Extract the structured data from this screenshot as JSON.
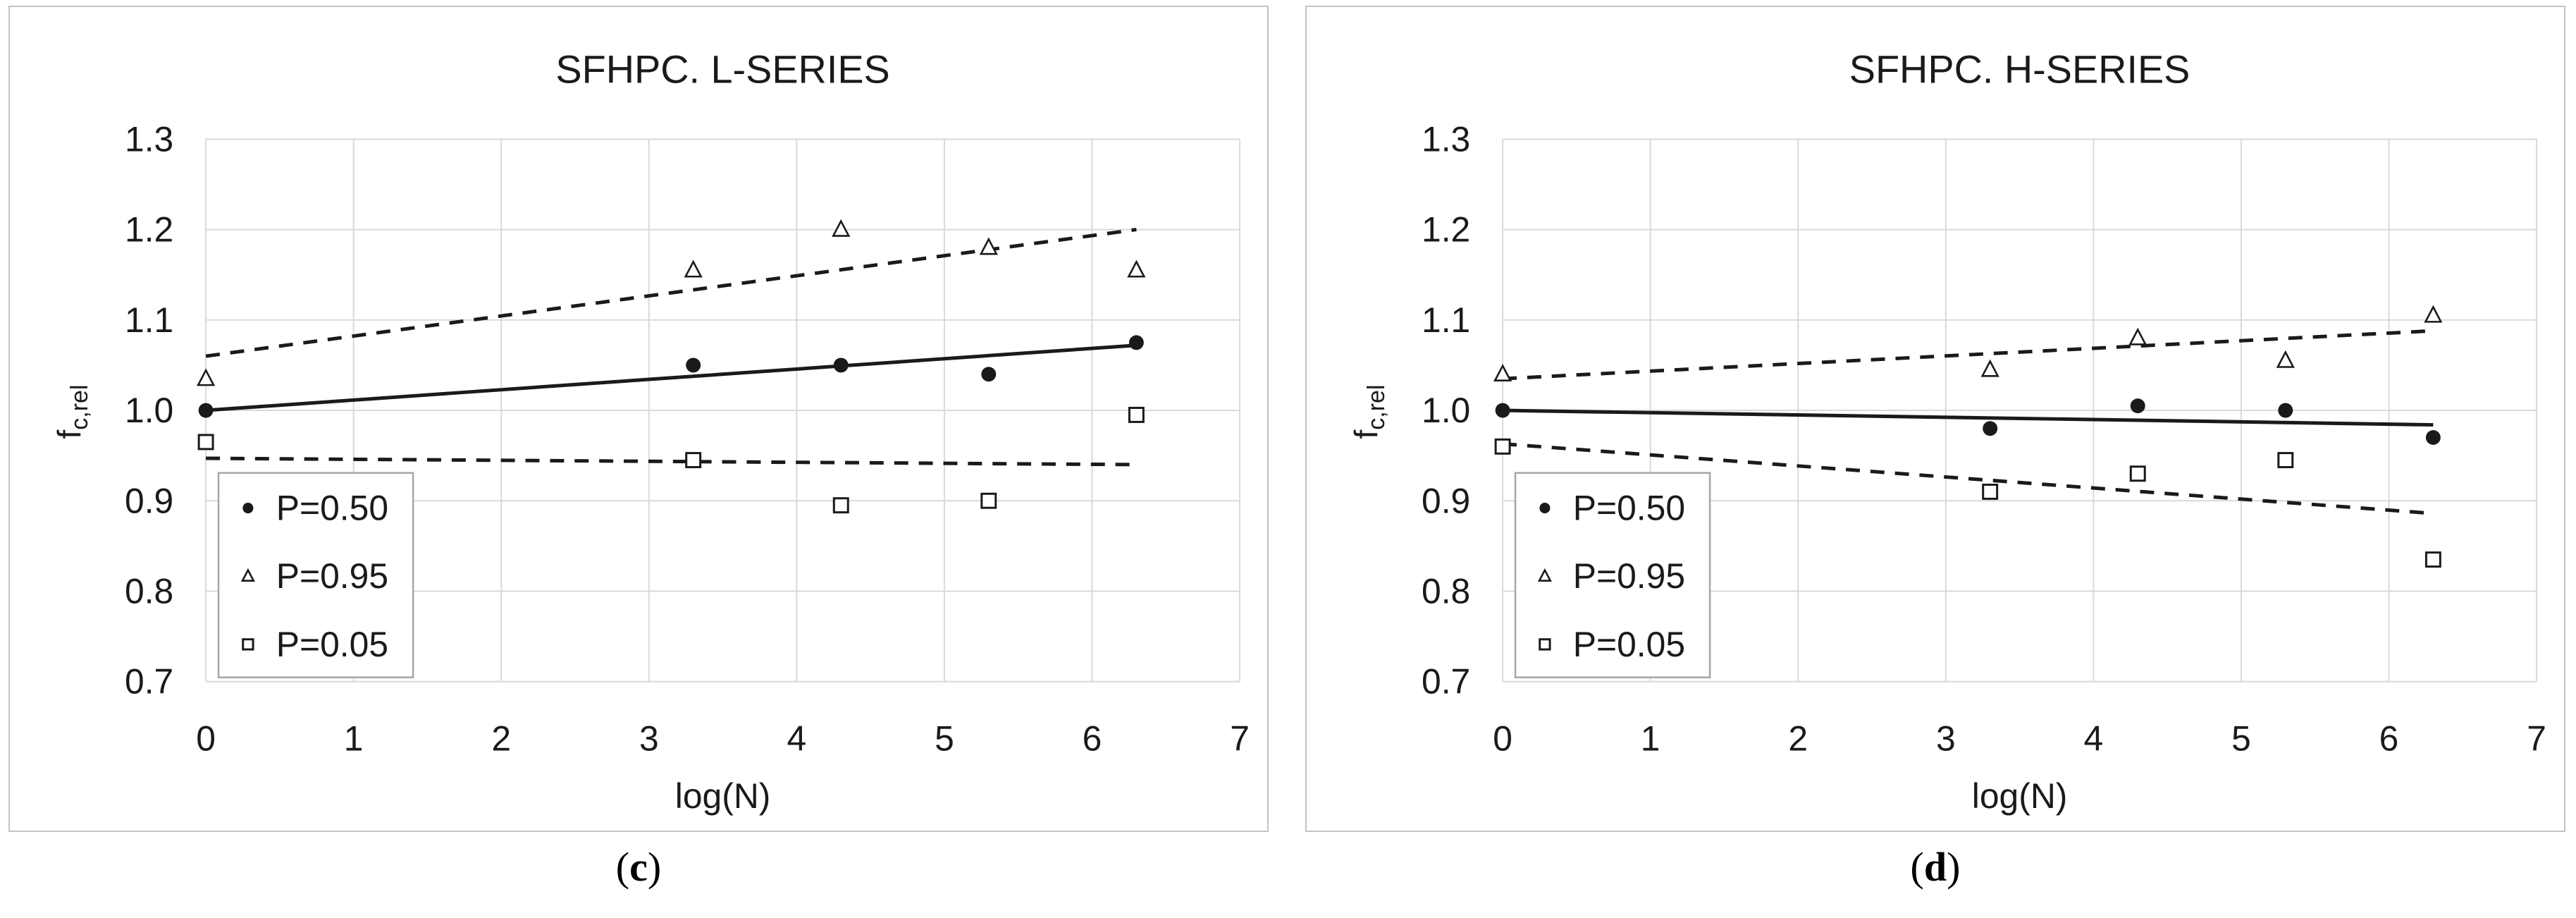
{
  "colors": {
    "grid": "#d9d9d9",
    "panel_border": "#c3c3c3",
    "legend_border": "#a6a6a6",
    "marker_and_line": "#1a1a1a",
    "title_text": "#404040",
    "background": "#ffffff"
  },
  "chart_data": [
    {
      "type": "scatter",
      "title": "SFHPC. L-SERIES",
      "xlabel": "log(N)",
      "ylabel_main": "f",
      "ylabel_sub": "c,rel",
      "caption_pre": "(",
      "caption_letter": "c",
      "caption_post": ")",
      "xlim": [
        0,
        7
      ],
      "ylim": [
        0.7,
        1.3
      ],
      "xticks": [
        "0",
        "1",
        "2",
        "3",
        "4",
        "5",
        "6",
        "7"
      ],
      "yticks": [
        "1.3",
        "1.2",
        "1.1",
        "1.0",
        "0.9",
        "0.8",
        "0.7"
      ],
      "grid": true,
      "legend": {
        "position": "bottom-left",
        "entries": [
          {
            "label": "P=0.50",
            "marker": "filled-circle"
          },
          {
            "label": "P=0.95",
            "marker": "open-triangle"
          },
          {
            "label": "P=0.05",
            "marker": "open-square"
          }
        ]
      },
      "series": [
        {
          "name": "P=0.50",
          "marker": "filled-circle",
          "points": [
            [
              0,
              1.0
            ],
            [
              3.3,
              1.05
            ],
            [
              4.3,
              1.05
            ],
            [
              5.3,
              1.04
            ],
            [
              6.3,
              1.075
            ]
          ]
        },
        {
          "name": "P=0.95",
          "marker": "open-triangle",
          "points": [
            [
              0,
              1.035
            ],
            [
              3.3,
              1.155
            ],
            [
              4.3,
              1.2
            ],
            [
              5.3,
              1.18
            ],
            [
              6.3,
              1.155
            ]
          ]
        },
        {
          "name": "P=0.05",
          "marker": "open-square",
          "points": [
            [
              0,
              0.965
            ],
            [
              3.3,
              0.945
            ],
            [
              4.3,
              0.895
            ],
            [
              5.3,
              0.9
            ],
            [
              6.3,
              0.995
            ]
          ]
        }
      ],
      "trend_lines": [
        {
          "name": "median-fit",
          "style": "solid",
          "from": [
            0,
            1.0
          ],
          "to": [
            6.3,
            1.072
          ]
        },
        {
          "name": "upper-95-fit",
          "style": "dashed",
          "from": [
            0,
            1.06
          ],
          "to": [
            6.3,
            1.2
          ]
        },
        {
          "name": "lower-05-fit",
          "style": "dashed",
          "from": [
            0,
            0.947
          ],
          "to": [
            6.3,
            0.94
          ]
        }
      ]
    },
    {
      "type": "scatter",
      "title": "SFHPC. H-SERIES",
      "xlabel": "log(N)",
      "ylabel_main": "f",
      "ylabel_sub": "c,rel",
      "caption_pre": "(",
      "caption_letter": "d",
      "caption_post": ")",
      "xlim": [
        0,
        7
      ],
      "ylim": [
        0.7,
        1.3
      ],
      "xticks": [
        "0",
        "1",
        "2",
        "3",
        "4",
        "5",
        "6",
        "7"
      ],
      "yticks": [
        "1.3",
        "1.2",
        "1.1",
        "1.0",
        "0.9",
        "0.8",
        "0.7"
      ],
      "grid": true,
      "legend": {
        "position": "bottom-left",
        "entries": [
          {
            "label": "P=0.50",
            "marker": "filled-circle"
          },
          {
            "label": "P=0.95",
            "marker": "open-triangle"
          },
          {
            "label": "P=0.05",
            "marker": "open-square"
          }
        ]
      },
      "series": [
        {
          "name": "P=0.50",
          "marker": "filled-circle",
          "points": [
            [
              0,
              1.0
            ],
            [
              3.3,
              0.98
            ],
            [
              4.3,
              1.005
            ],
            [
              5.3,
              1.0
            ],
            [
              6.3,
              0.97
            ]
          ]
        },
        {
          "name": "P=0.95",
          "marker": "open-triangle",
          "points": [
            [
              0,
              1.04
            ],
            [
              3.3,
              1.045
            ],
            [
              4.3,
              1.08
            ],
            [
              5.3,
              1.055
            ],
            [
              6.3,
              1.105
            ]
          ]
        },
        {
          "name": "P=0.05",
          "marker": "open-square",
          "points": [
            [
              0,
              0.96
            ],
            [
              3.3,
              0.91
            ],
            [
              4.3,
              0.93
            ],
            [
              5.3,
              0.945
            ],
            [
              6.3,
              0.835
            ]
          ]
        }
      ],
      "trend_lines": [
        {
          "name": "median-fit",
          "style": "solid",
          "from": [
            0,
            1.0
          ],
          "to": [
            6.3,
            0.984
          ]
        },
        {
          "name": "upper-95-fit",
          "style": "dashed",
          "from": [
            0,
            1.035
          ],
          "to": [
            6.3,
            1.088
          ]
        },
        {
          "name": "lower-05-fit",
          "style": "dashed",
          "from": [
            0,
            0.963
          ],
          "to": [
            6.3,
            0.886
          ]
        }
      ]
    }
  ]
}
